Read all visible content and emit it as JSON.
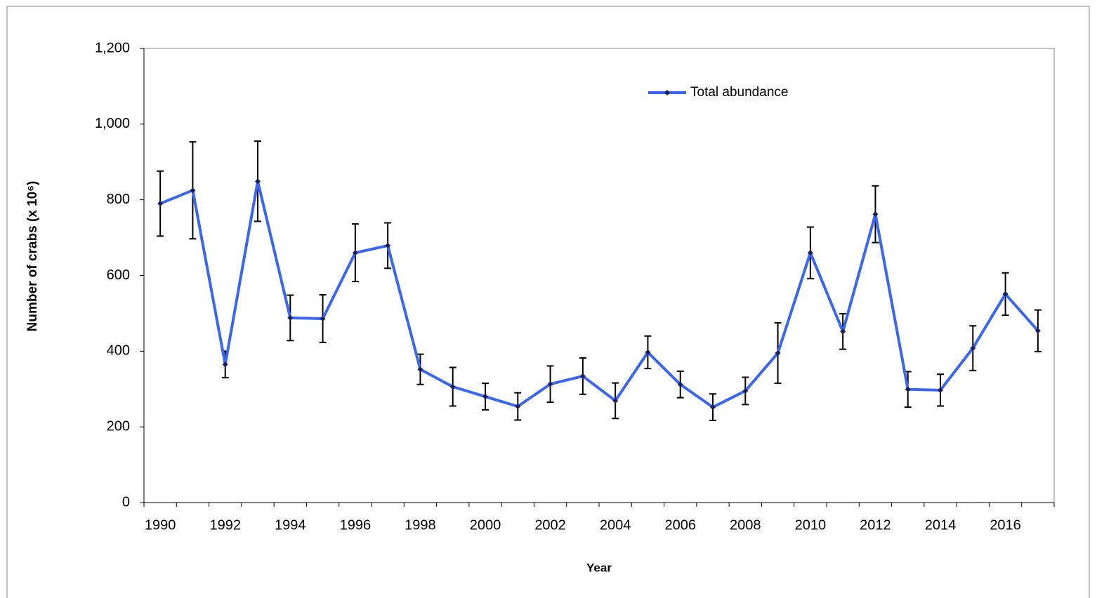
{
  "chart_data": {
    "type": "line",
    "y_label": "Number of crabs (x 10⁶)",
    "x_label": "Year",
    "categories": [
      "1990",
      null,
      "1992",
      null,
      "1994",
      null,
      "1996",
      null,
      "1998",
      null,
      "2000",
      null,
      "2002",
      null,
      "2004",
      null,
      "2006",
      null,
      "2008",
      null,
      "2010",
      null,
      "2012",
      null,
      "2014",
      null,
      "2016",
      null
    ],
    "series": [
      {
        "name": "Total abundance",
        "color": "#3a66f2",
        "marker_color": "#1a1f5c",
        "values": [
          790,
          825,
          365,
          849,
          488,
          486,
          660,
          679,
          352,
          306,
          280,
          254,
          313,
          334,
          269,
          397,
          312,
          252,
          295,
          395,
          660,
          452,
          762,
          299,
          297,
          408,
          551,
          454
        ],
        "errors": [
          86,
          128,
          35,
          106,
          60,
          63,
          76,
          60,
          40,
          51,
          35,
          36,
          48,
          48,
          47,
          43,
          35,
          35,
          36,
          80,
          68,
          47,
          75,
          47,
          42,
          59,
          56,
          55
        ]
      }
    ],
    "ylim": [
      0,
      1200
    ],
    "yticks": [
      0,
      200,
      400,
      600,
      800,
      {
        "value": 1000,
        "label": "1,000"
      },
      {
        "value": 1200,
        "label": "1,200"
      }
    ],
    "legend": "top-right"
  }
}
